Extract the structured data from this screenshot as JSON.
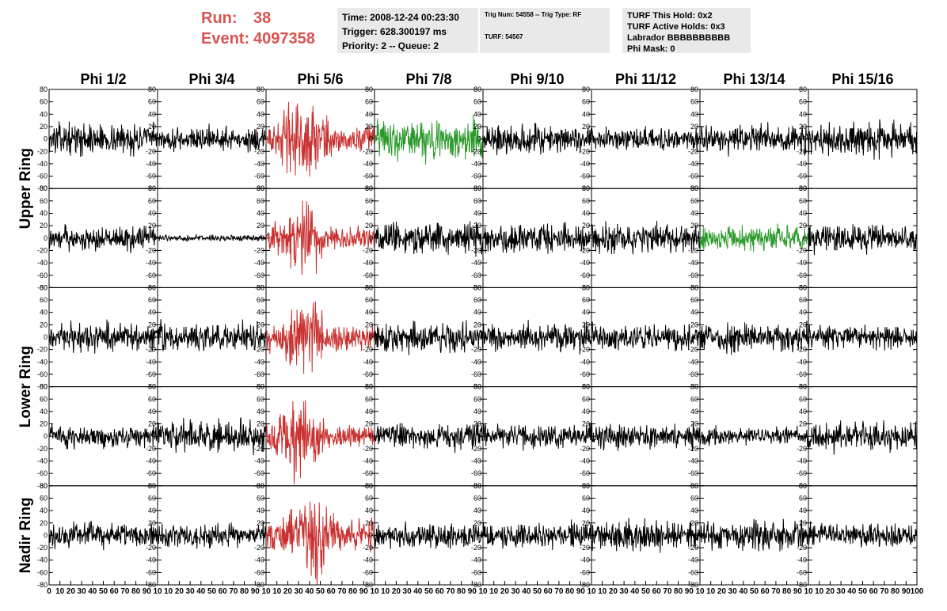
{
  "header": {
    "run_label": "Run:",
    "run_value": "38",
    "event_label": "Event:",
    "event_value": "4097358",
    "accent_color": "#d9534f",
    "time": "Time: 2008-12-24 00:23:30",
    "trigger": "Trigger: 628.300197 ms",
    "priority": "Priority: 2 -- Queue: 2",
    "trig_num": "Trig Num: 54558 -- Trig Type: RF",
    "turf": "TURF: 54567",
    "turf_this_hold": "TURF This Hold: 0x2",
    "turf_active_holds": "TURF Active Holds: 0x3",
    "labrador": "Labrador BBBBBBBBBB",
    "phi_mask": "Phi Mask: 0"
  },
  "chart_data": {
    "type": "line",
    "columns": [
      "Phi 1/2",
      "Phi 3/4",
      "Phi 5/6",
      "Phi 7/8",
      "Phi 9/10",
      "Phi 11/12",
      "Phi 13/14",
      "Phi 15/16"
    ],
    "rows": [
      {
        "panels": [
          0,
          1
        ],
        "label": "Upper Ring"
      },
      {
        "panels": [
          2,
          3
        ],
        "label": "Lower Ring"
      },
      {
        "panels": [
          4
        ],
        "label": "Nadir Ring"
      }
    ],
    "xlim": [
      0,
      100
    ],
    "ylim": [
      -80,
      80
    ],
    "yticks": [
      -80,
      -60,
      -40,
      -20,
      0,
      20,
      40,
      60,
      80
    ],
    "xticks": [
      0,
      10,
      20,
      30,
      40,
      50,
      60,
      70,
      80,
      90,
      100
    ],
    "samples_per_trace": 260,
    "colors": {
      "normal": "#000000",
      "red": "#c8312f",
      "green": "#2a9a2a"
    },
    "series": [
      {
        "row": 0,
        "col": 0,
        "amplitude": 15,
        "color": "normal"
      },
      {
        "row": 0,
        "col": 1,
        "amplitude": 12,
        "color": "normal"
      },
      {
        "row": 0,
        "col": 2,
        "amplitude": 30,
        "color": "red",
        "pulse_center": 35
      },
      {
        "row": 0,
        "col": 3,
        "amplitude": 20,
        "color": "green"
      },
      {
        "row": 0,
        "col": 4,
        "amplitude": 15,
        "color": "normal"
      },
      {
        "row": 0,
        "col": 5,
        "amplitude": 11,
        "color": "normal"
      },
      {
        "row": 0,
        "col": 6,
        "amplitude": 14,
        "color": "normal"
      },
      {
        "row": 0,
        "col": 7,
        "amplitude": 17,
        "color": "normal"
      },
      {
        "row": 1,
        "col": 0,
        "amplitude": 12,
        "color": "normal"
      },
      {
        "row": 1,
        "col": 1,
        "amplitude": 3,
        "color": "normal"
      },
      {
        "row": 1,
        "col": 2,
        "amplitude": 26,
        "color": "red",
        "pulse_center": 33
      },
      {
        "row": 1,
        "col": 3,
        "amplitude": 16,
        "color": "normal"
      },
      {
        "row": 1,
        "col": 4,
        "amplitude": 15,
        "color": "normal"
      },
      {
        "row": 1,
        "col": 5,
        "amplitude": 14,
        "color": "normal"
      },
      {
        "row": 1,
        "col": 6,
        "amplitude": 12,
        "color": "green"
      },
      {
        "row": 1,
        "col": 7,
        "amplitude": 14,
        "color": "normal"
      },
      {
        "row": 2,
        "col": 0,
        "amplitude": 14,
        "color": "normal"
      },
      {
        "row": 2,
        "col": 1,
        "amplitude": 14,
        "color": "normal"
      },
      {
        "row": 2,
        "col": 2,
        "amplitude": 28,
        "color": "red",
        "pulse_center": 38
      },
      {
        "row": 2,
        "col": 3,
        "amplitude": 15,
        "color": "normal"
      },
      {
        "row": 2,
        "col": 4,
        "amplitude": 14,
        "color": "normal"
      },
      {
        "row": 2,
        "col": 5,
        "amplitude": 13,
        "color": "normal"
      },
      {
        "row": 2,
        "col": 6,
        "amplitude": 14,
        "color": "normal"
      },
      {
        "row": 2,
        "col": 7,
        "amplitude": 12,
        "color": "normal"
      },
      {
        "row": 3,
        "col": 0,
        "amplitude": 11,
        "color": "normal"
      },
      {
        "row": 3,
        "col": 1,
        "amplitude": 16,
        "color": "normal"
      },
      {
        "row": 3,
        "col": 2,
        "amplitude": 28,
        "color": "red",
        "pulse_center": 30
      },
      {
        "row": 3,
        "col": 3,
        "amplitude": 13,
        "color": "normal"
      },
      {
        "row": 3,
        "col": 4,
        "amplitude": 12,
        "color": "normal"
      },
      {
        "row": 3,
        "col": 5,
        "amplitude": 13,
        "color": "normal"
      },
      {
        "row": 3,
        "col": 6,
        "amplitude": 9,
        "color": "normal"
      },
      {
        "row": 3,
        "col": 7,
        "amplitude": 14,
        "color": "normal"
      },
      {
        "row": 4,
        "col": 0,
        "amplitude": 12,
        "color": "normal"
      },
      {
        "row": 4,
        "col": 1,
        "amplitude": 12,
        "color": "normal"
      },
      {
        "row": 4,
        "col": 2,
        "amplitude": 32,
        "color": "red",
        "pulse_center": 40
      },
      {
        "row": 4,
        "col": 3,
        "amplitude": 13,
        "color": "normal"
      },
      {
        "row": 4,
        "col": 4,
        "amplitude": 13,
        "color": "normal"
      },
      {
        "row": 4,
        "col": 5,
        "amplitude": 15,
        "color": "normal"
      },
      {
        "row": 4,
        "col": 6,
        "amplitude": 14,
        "color": "normal"
      },
      {
        "row": 4,
        "col": 7,
        "amplitude": 11,
        "color": "normal"
      }
    ]
  }
}
